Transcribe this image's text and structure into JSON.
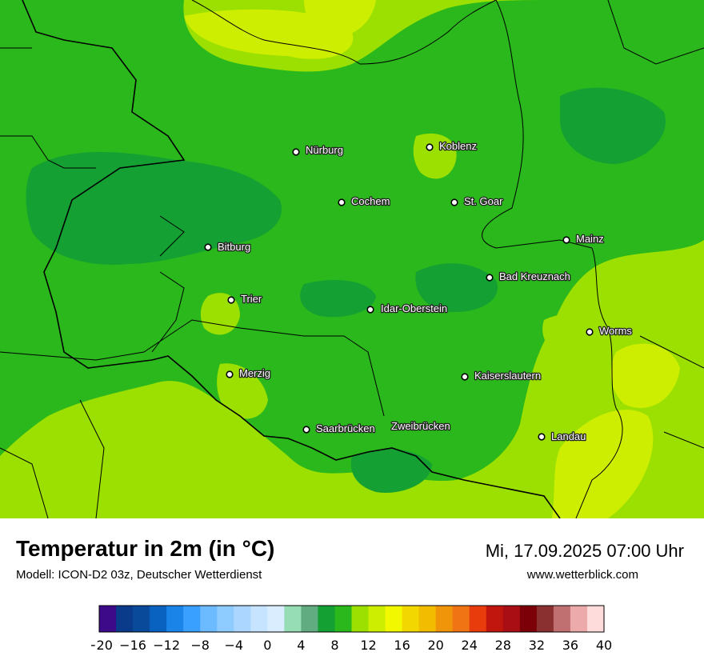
{
  "title": "Temperatur in 2m (in °C)",
  "subtitle": "Modell: ICON-D2 03z, Deutscher Wetterdienst",
  "datetime": "Mi, 17.09.2025 07:00 Uhr",
  "website": "www.wetterblick.com",
  "cities": [
    {
      "name": "Nürburg"
    },
    {
      "name": "Koblenz"
    },
    {
      "name": "Cochem"
    },
    {
      "name": "St. Goar"
    },
    {
      "name": "Mainz"
    },
    {
      "name": "Bitburg"
    },
    {
      "name": "Bad Kreuznach"
    },
    {
      "name": "Trier"
    },
    {
      "name": "Idar-Oberstein"
    },
    {
      "name": "Worms"
    },
    {
      "name": "Merzig"
    },
    {
      "name": "Kaiserslautern"
    },
    {
      "name": "Saarbrücken"
    },
    {
      "name": "Zweibrücken"
    },
    {
      "name": "Landau"
    }
  ],
  "legend": {
    "min": -20,
    "max": 40,
    "step": 2,
    "tick_labels": [
      "−20",
      "−16",
      "−12",
      "−8",
      "−4",
      "0",
      "4",
      "8",
      "12",
      "16",
      "20",
      "24",
      "28",
      "32",
      "36",
      "40"
    ],
    "colors": [
      "#3d0a8a",
      "#0a3a8a",
      "#0a4a9a",
      "#0a62c0",
      "#1a84e8",
      "#3aa0ff",
      "#6cbaff",
      "#8ecbff",
      "#aad6ff",
      "#c6e4ff",
      "#daedff",
      "#96ddb5",
      "#62ac82",
      "#14a032",
      "#2ab81c",
      "#9be000",
      "#cdee00",
      "#f2f800",
      "#f2d800",
      "#f2bc00",
      "#f0940a",
      "#f07414",
      "#e83c0c",
      "#c0160e",
      "#a80e14",
      "#7c0008",
      "#8a3030",
      "#c07070",
      "#ecaaaa",
      "#ffdcdc"
    ]
  },
  "map_colors": {
    "temp_8_10": "#14a032",
    "temp_10_12": "#2ab81c",
    "temp_12_14": "#9be000",
    "temp_14_16": "#cdee00",
    "border": "#000000"
  }
}
